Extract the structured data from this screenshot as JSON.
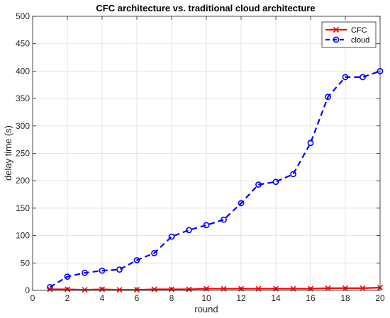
{
  "chart_data": {
    "type": "line",
    "title": "CFC architecture vs. traditional cloud architecture",
    "xlabel": "round",
    "ylabel": "delay time (s)",
    "xlim": [
      0,
      20
    ],
    "ylim": [
      0,
      500
    ],
    "xticks": [
      0,
      2,
      4,
      6,
      8,
      10,
      12,
      14,
      16,
      18,
      20
    ],
    "yticks": [
      0,
      50,
      100,
      150,
      200,
      250,
      300,
      350,
      400,
      450,
      500
    ],
    "grid": true,
    "legend_position": "top-right",
    "x": [
      1,
      2,
      3,
      4,
      5,
      6,
      7,
      8,
      9,
      10,
      11,
      12,
      13,
      14,
      15,
      16,
      17,
      18,
      19,
      20
    ],
    "series": [
      {
        "name": "CFC",
        "color": "#ff0000",
        "line_style": "solid",
        "marker": "x",
        "values": [
          2,
          2,
          1,
          2,
          1,
          1,
          2,
          2,
          2,
          3,
          3,
          3,
          3,
          3,
          3,
          3,
          4,
          4,
          4,
          5
        ]
      },
      {
        "name": "cloud",
        "color": "#0000ff",
        "line_style": "dashed",
        "marker": "circle",
        "values": [
          6,
          25,
          32,
          36,
          38,
          55,
          68,
          98,
          110,
          119,
          129,
          159,
          193,
          198,
          212,
          269,
          353,
          389,
          389,
          400
        ]
      }
    ]
  }
}
